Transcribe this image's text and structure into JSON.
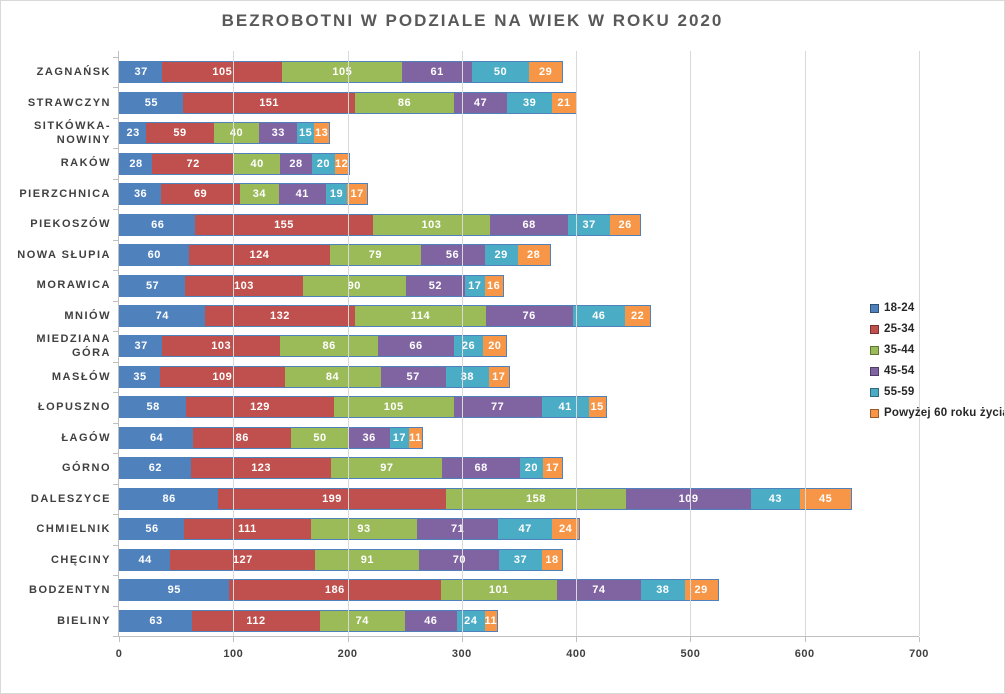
{
  "chart_data": {
    "type": "bar",
    "orientation": "horizontal-stacked",
    "title": "BEZROBOTNI W PODZIALE NA WIEK W ROKU 2020",
    "xlabel": "",
    "ylabel": "",
    "xlim": [
      0,
      700
    ],
    "x_ticks": [
      0,
      100,
      200,
      300,
      400,
      500,
      600,
      700
    ],
    "grid": true,
    "legend_position": "right",
    "bar_border_color": "#4f81bd",
    "grid_color": "#d9d9d9",
    "axis_color": "#bfbfbf",
    "label_color": "#404040",
    "title_color": "#595959",
    "categories": [
      "ZAGNAŃSK",
      "STRAWCZYN",
      "SITKÓWKA-NOWINY",
      "RAKÓW",
      "PIERZCHNICA",
      "PIEKOSZÓW",
      "NOWA SŁUPIA",
      "MORAWICA",
      "MNIÓW",
      "MIEDZIANA GÓRA",
      "MASŁÓW",
      "ŁOPUSZNO",
      "ŁAGÓW",
      "GÓRNO",
      "DALESZYCE",
      "CHMIELNIK",
      "CHĘCINY",
      "BODZENTYN",
      "BIELINY"
    ],
    "series": [
      {
        "name": "18-24",
        "color": "#4F81BD",
        "values": [
          37,
          55,
          23,
          28,
          36,
          66,
          60,
          57,
          74,
          37,
          35,
          58,
          64,
          62,
          86,
          56,
          44,
          95,
          63
        ]
      },
      {
        "name": "25-34",
        "color": "#C0504D",
        "values": [
          105,
          151,
          59,
          72,
          69,
          155,
          124,
          103,
          132,
          103,
          109,
          129,
          86,
          123,
          199,
          111,
          127,
          186,
          112
        ]
      },
      {
        "name": "35-44",
        "color": "#9BBB59",
        "values": [
          105,
          86,
          40,
          40,
          34,
          103,
          79,
          90,
          114,
          86,
          84,
          105,
          50,
          97,
          158,
          93,
          91,
          101,
          74
        ]
      },
      {
        "name": "45-54",
        "color": "#8064A2",
        "values": [
          61,
          47,
          33,
          28,
          41,
          68,
          56,
          52,
          76,
          66,
          57,
          77,
          36,
          68,
          109,
          71,
          70,
          74,
          46
        ]
      },
      {
        "name": "55-59",
        "color": "#4BACC6",
        "values": [
          50,
          39,
          15,
          20,
          19,
          37,
          29,
          17,
          46,
          26,
          38,
          41,
          17,
          20,
          43,
          47,
          37,
          38,
          24
        ]
      },
      {
        "name": "Powyżej 60 roku życia",
        "color": "#F79646",
        "values": [
          29,
          21,
          13,
          12,
          17,
          26,
          28,
          16,
          22,
          20,
          17,
          15,
          11,
          17,
          45,
          24,
          18,
          29,
          11
        ]
      }
    ]
  }
}
